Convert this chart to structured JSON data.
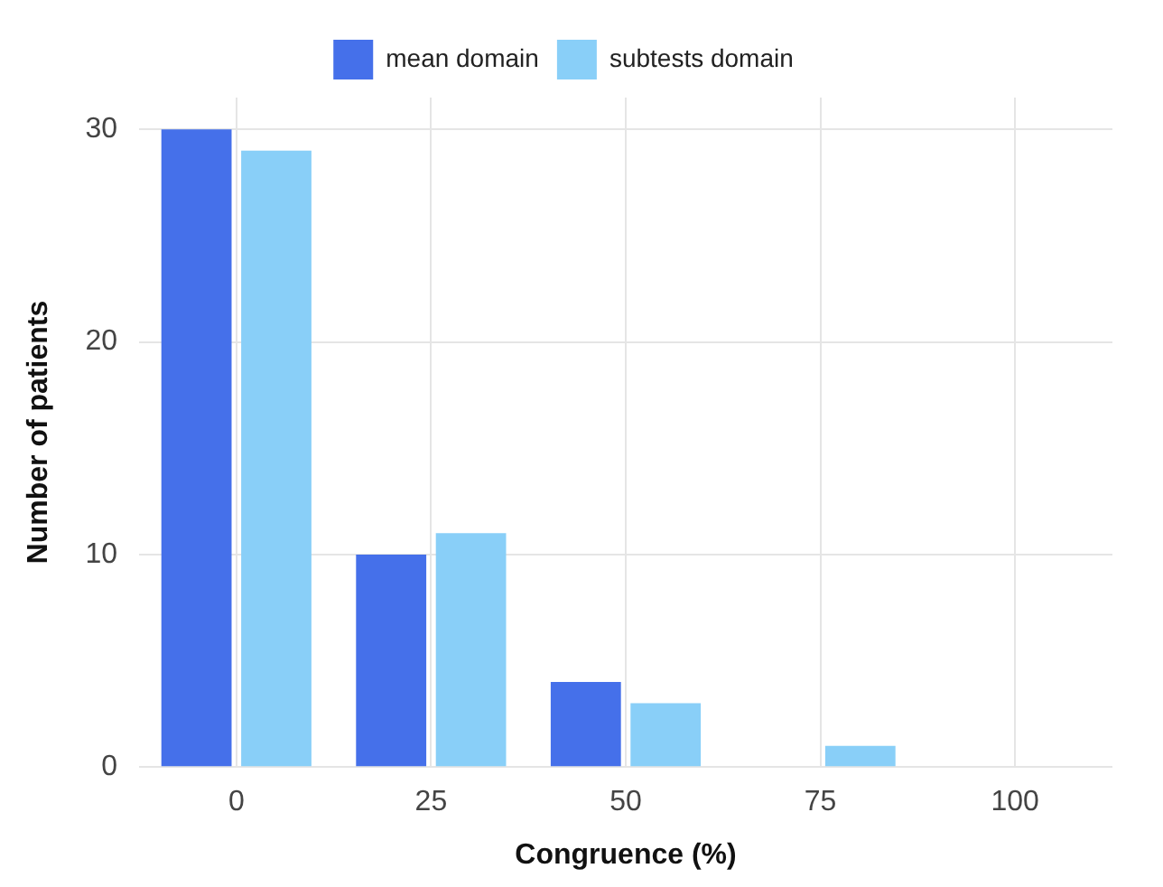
{
  "chart_data": {
    "type": "bar",
    "xlabel": "Congruence (%)",
    "ylabel": "Number of patients",
    "categories": [
      "0",
      "25",
      "50",
      "75",
      "100"
    ],
    "series": [
      {
        "name": "mean domain",
        "color": "#4570ea",
        "values": [
          30,
          10,
          4,
          0,
          0
        ]
      },
      {
        "name": "subtests domain",
        "color": "#89cff8",
        "values": [
          29,
          11,
          3,
          1,
          0
        ]
      }
    ],
    "ylim": [
      0,
      31.5
    ],
    "yticks": [
      0,
      10,
      20,
      30
    ],
    "grid": true,
    "legend": "top"
  }
}
